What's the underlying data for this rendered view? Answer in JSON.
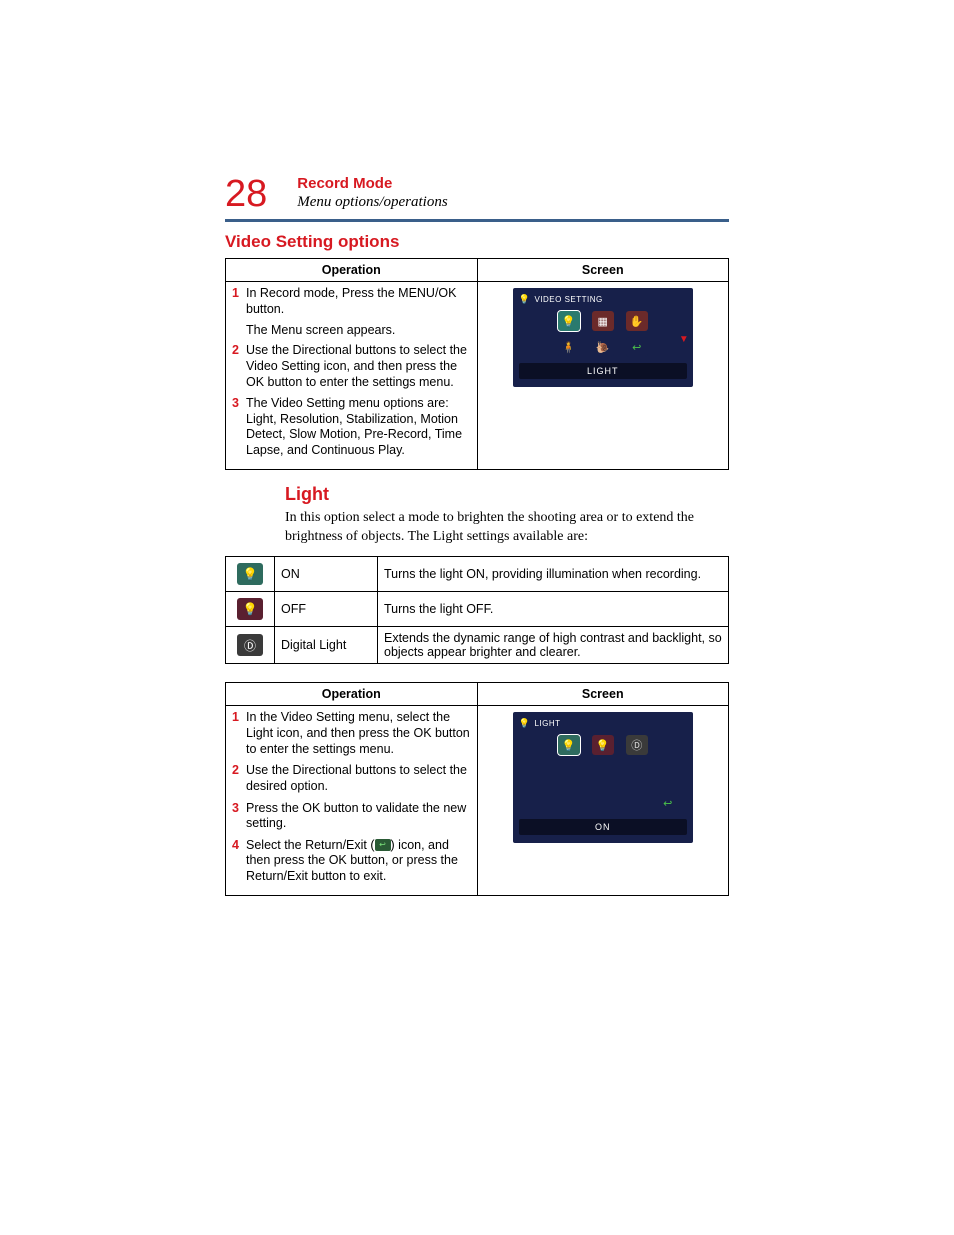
{
  "page_number": "28",
  "chapter": "Record Mode",
  "subtitle": "Menu options/operations",
  "section_title": "Video Setting options",
  "table1": {
    "head_op": "Operation",
    "head_screen": "Screen",
    "steps": [
      {
        "num": "1",
        "text": "In Record mode, Press the MENU/OK button."
      },
      {
        "note": "The Menu screen appears."
      },
      {
        "num": "2",
        "text": "Use the Directional buttons to select the Video Setting icon, and then press the OK button to enter the settings menu."
      },
      {
        "num": "3",
        "text": "The Video Setting menu options are: Light, Resolution, Stabilization, Motion Detect, Slow Motion, Pre-Record, Time Lapse, and Continuous Play."
      }
    ],
    "screen": {
      "title": "VIDEO SETTING",
      "footer": "LIGHT",
      "icons_row1": [
        {
          "bg": "#2a7a6e",
          "glyph": "💡",
          "name": "light-icon",
          "selected": true
        },
        {
          "bg": "#6b2a2a",
          "glyph": "▦",
          "name": "resolution-icon"
        },
        {
          "bg": "#6b2a2a",
          "glyph": "✋",
          "name": "stabilization-icon",
          "glyph_color": "#e07b2a"
        }
      ],
      "icons_row2": [
        {
          "bg": "#17204a",
          "glyph": "🧍",
          "name": "motion-detect-icon",
          "glyph_color": "#4aa0e0"
        },
        {
          "bg": "#17204a",
          "glyph": "🐌",
          "name": "slow-motion-icon",
          "glyph_color": "#d08a4a"
        },
        {
          "bg": "#17204a",
          "glyph": "↩",
          "name": "return-icon",
          "glyph_color": "#4ac04a"
        }
      ]
    }
  },
  "light_section": {
    "title": "Light",
    "intro": "In this option select a mode to brighten the shooting area or to extend the brightness of objects. The Light settings available are:",
    "rows": [
      {
        "icon_bg": "#2e6b5e",
        "icon_glyph": "💡",
        "name": "ON",
        "desc": "Turns the light ON, providing illumination when recording."
      },
      {
        "icon_bg": "#5a2030",
        "icon_glyph": "💡",
        "name": "OFF",
        "desc": "Turns the light OFF."
      },
      {
        "icon_bg": "#3a3a3a",
        "icon_glyph": "Ⓓ",
        "name": "Digital Light",
        "desc": "Extends the dynamic range of high contrast and backlight, so objects appear brighter and clearer."
      }
    ]
  },
  "table2": {
    "head_op": "Operation",
    "head_screen": "Screen",
    "steps": [
      {
        "num": "1",
        "text": "In the Video Setting menu, select the Light icon, and then press the OK button to enter the settings menu."
      },
      {
        "num": "2",
        "text": "Use the Directional buttons to select the desired option."
      },
      {
        "num": "3",
        "text": "Press the OK button to validate the new setting."
      },
      {
        "num": "4",
        "pre": "Select the Return/Exit (",
        "post": ") icon, and then press the OK button, or press the Return/Exit button to exit."
      }
    ],
    "screen": {
      "title": "LIGHT",
      "footer": "ON",
      "icons_row1": [
        {
          "bg": "#2e6b5e",
          "glyph": "💡",
          "name": "light-on-icon",
          "selected": true
        },
        {
          "bg": "#5a2030",
          "glyph": "💡",
          "name": "light-off-icon"
        },
        {
          "bg": "#3a3a3a",
          "glyph": "Ⓓ",
          "name": "digital-light-icon",
          "glyph_color": "#cfcfcf"
        }
      ],
      "icons_row2": [
        {
          "bg": "#17204a",
          "glyph": "↩",
          "name": "return-icon",
          "glyph_color": "#4ac04a"
        }
      ]
    }
  },
  "colors": {
    "accent": "#d71921",
    "rule": "#3a5f8a",
    "screen_bg": "#17204a"
  }
}
